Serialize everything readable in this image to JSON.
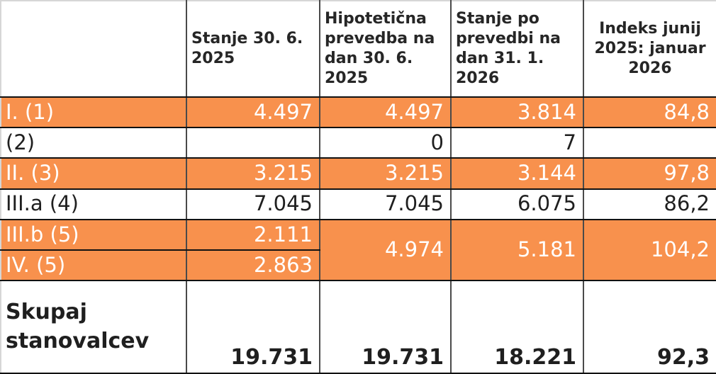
{
  "colors": {
    "highlight": "#F8914D",
    "highlight_text": "#FFFFFF",
    "text": "#1F1F1F",
    "grid_vertical": "#4A4A4A",
    "grid_horizontal": "#111111"
  },
  "chart_data": {
    "type": "table",
    "columns": [
      "",
      "Stanje 30. 6. 2025",
      "Hipotetična prevedba na dan 30. 6. 2025",
      "Stanje po prevedbi na dan 31. 1. 2026",
      "Indeks junij 2025: januar 2026"
    ],
    "rows": [
      {
        "label": "I. (1)",
        "highlighted": true,
        "values": [
          "4.497",
          "4.497",
          "3.814",
          "84,8"
        ]
      },
      {
        "label": "(2)",
        "highlighted": false,
        "values": [
          "",
          "0",
          "7",
          ""
        ]
      },
      {
        "label": "II. (3)",
        "highlighted": true,
        "values": [
          "3.215",
          "3.215",
          "3.144",
          "97,8"
        ]
      },
      {
        "label": "III.a (4)",
        "highlighted": false,
        "values": [
          "7.045",
          "7.045",
          "6.075",
          "86,2"
        ]
      },
      {
        "label": "III.b (5)",
        "highlighted": true,
        "values": [
          "2.111"
        ]
      },
      {
        "label": "IV. (5)",
        "highlighted": true,
        "values": [
          "2.863"
        ]
      }
    ],
    "merged_cells": {
      "spans_rows": [
        "III.b (5)",
        "IV. (5)"
      ],
      "highlighted": true,
      "values": [
        "4.974",
        "5.181",
        "104,2"
      ]
    },
    "total_row": {
      "label": "Skupaj stanovalcev",
      "values": [
        "19.731",
        "19.731",
        "18.221",
        "92,3"
      ]
    }
  }
}
